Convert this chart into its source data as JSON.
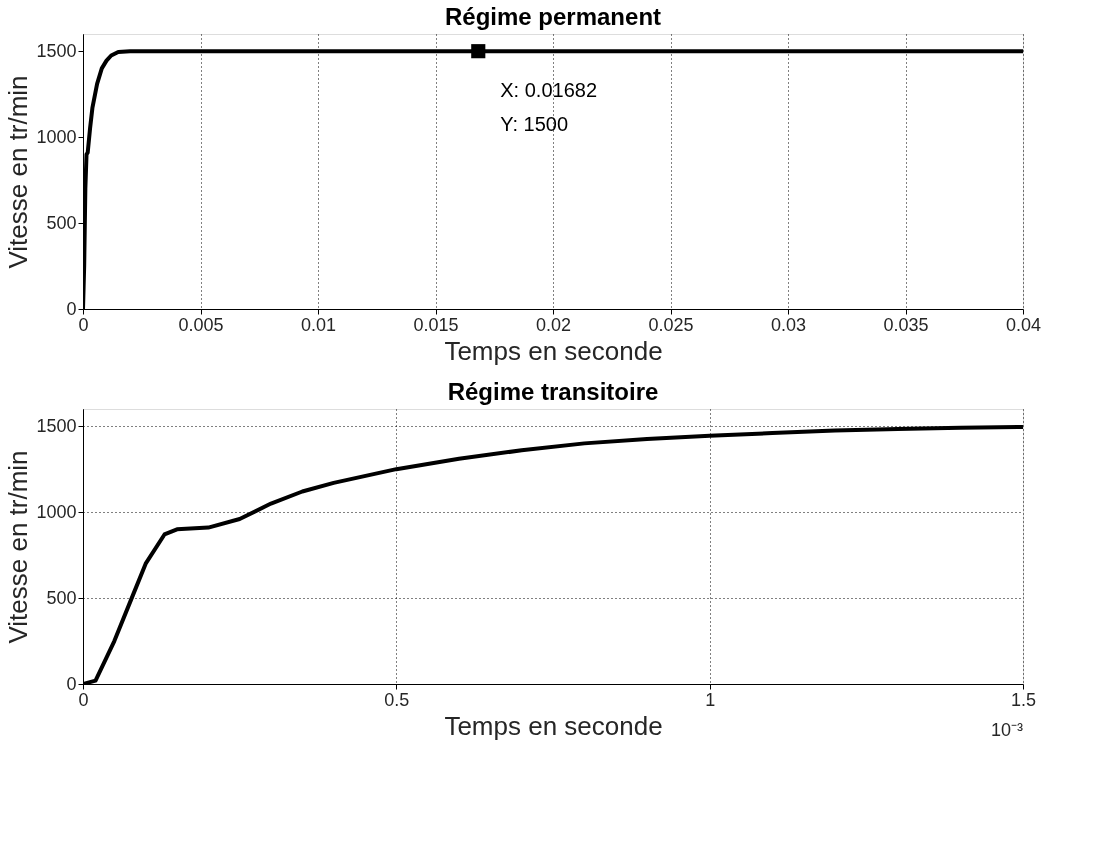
{
  "chart_data": [
    {
      "type": "line",
      "title": "Régime permanent",
      "xlabel": "Temps en seconde",
      "ylabel": "Vitesse en tr/min",
      "x": [
        0,
        5e-05,
        0.0001,
        0.00015,
        0.0002,
        0.0003,
        0.0004,
        0.0006,
        0.0008,
        0.001,
        0.0012,
        0.0015,
        0.002,
        0.01,
        0.02,
        0.03,
        0.04
      ],
      "series": [
        {
          "color": "#000000",
          "values": [
            0,
            250,
            700,
            900,
            910,
            1050,
            1170,
            1310,
            1400,
            1445,
            1475,
            1495,
            1500,
            1500,
            1500,
            1500,
            1500
          ]
        }
      ],
      "xlim": [
        0,
        0.04
      ],
      "ylim": [
        0,
        1600
      ],
      "xticks": [
        0,
        0.005,
        0.01,
        0.015,
        0.02,
        0.025,
        0.03,
        0.035,
        0.04
      ],
      "yticks": [
        0,
        500,
        1000,
        1500
      ],
      "grid": "x",
      "annotations": [
        {
          "text": "X: 0.01682\nY: 1500",
          "x": 0.01682,
          "y": 1500
        }
      ]
    },
    {
      "type": "line",
      "title": "Régime transitoire",
      "xlabel": "Temps en seconde",
      "ylabel": "Vitesse en tr/min",
      "x": [
        0,
        0.02,
        0.05,
        0.08,
        0.1,
        0.13,
        0.15,
        0.2,
        0.25,
        0.3,
        0.35,
        0.4,
        0.5,
        0.6,
        0.7,
        0.8,
        0.9,
        1,
        1.1,
        1.2,
        1.3,
        1.4,
        1.5
      ],
      "series": [
        {
          "color": "#000000",
          "values": [
            0,
            20,
            250,
            520,
            700,
            870,
            900,
            910,
            960,
            1050,
            1120,
            1170,
            1250,
            1310,
            1360,
            1400,
            1425,
            1445,
            1460,
            1475,
            1484,
            1491,
            1496
          ]
        }
      ],
      "xlim": [
        0,
        1.5
      ],
      "ylim": [
        0,
        1600
      ],
      "xticks": [
        0,
        0.5,
        1,
        1.5
      ],
      "yticks": [
        0,
        500,
        1000,
        1500
      ],
      "grid": true,
      "annotations": [
        "10⁻³"
      ]
    }
  ]
}
